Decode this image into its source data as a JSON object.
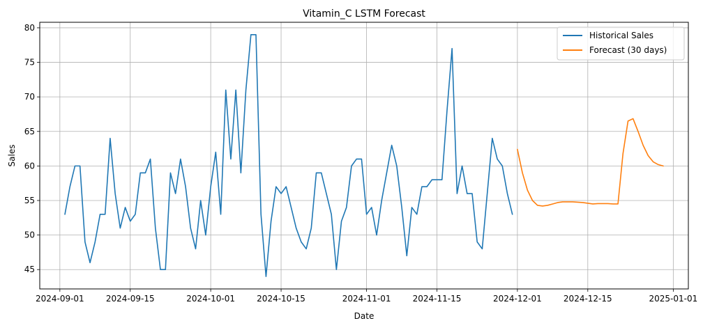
{
  "chart_data": {
    "type": "line",
    "title": "Vitamin_C LSTM Forecast",
    "xlabel": "Date",
    "ylabel": "Sales",
    "xlim": [
      "2024-08-28",
      "2025-01-04"
    ],
    "ylim": [
      42.2,
      80.8
    ],
    "x_ticks": [
      "2024-09-01",
      "2024-09-15",
      "2024-10-01",
      "2024-10-15",
      "2024-11-01",
      "2024-11-15",
      "2024-12-01",
      "2024-12-15",
      "2025-01-01"
    ],
    "y_ticks": [
      45,
      50,
      55,
      60,
      65,
      70,
      75,
      80
    ],
    "grid": true,
    "legend_position": "top-right",
    "series": [
      {
        "name": "Historical Sales",
        "color": "#1f77b4",
        "x_start": "2024-09-02",
        "x_end": "2024-11-30",
        "values": [
          53,
          57,
          60,
          60,
          49,
          46,
          49,
          53,
          53,
          64,
          56,
          51,
          54,
          52,
          53,
          59,
          59,
          61,
          51,
          45,
          45,
          59,
          56,
          61,
          57,
          51,
          48,
          55,
          50,
          57,
          62,
          53,
          71,
          61,
          71,
          59,
          71,
          79,
          79,
          53,
          44,
          52,
          57,
          56,
          57,
          54,
          51,
          49,
          48,
          51,
          59,
          59,
          56,
          53,
          45,
          52,
          54,
          60,
          61,
          61,
          53,
          54,
          50,
          55,
          59,
          63,
          60,
          54,
          47,
          54,
          53,
          57,
          57,
          58,
          58,
          58,
          68,
          77,
          56,
          60,
          56,
          56,
          49,
          48,
          56,
          64,
          61,
          60,
          56,
          53
        ]
      },
      {
        "name": "Forecast (30 days)",
        "color": "#ff7f0e",
        "x_start": "2024-12-01",
        "x_end": "2024-12-30",
        "values": [
          62.4,
          59.0,
          56.5,
          55.0,
          54.3,
          54.2,
          54.3,
          54.5,
          54.7,
          54.8,
          54.8,
          54.8,
          54.75,
          54.7,
          54.6,
          54.5,
          54.55,
          54.55,
          54.55,
          54.5,
          54.5,
          61.8,
          66.5,
          66.85,
          65.0,
          63.0,
          61.5,
          60.6,
          60.2,
          60.0
        ]
      }
    ]
  }
}
